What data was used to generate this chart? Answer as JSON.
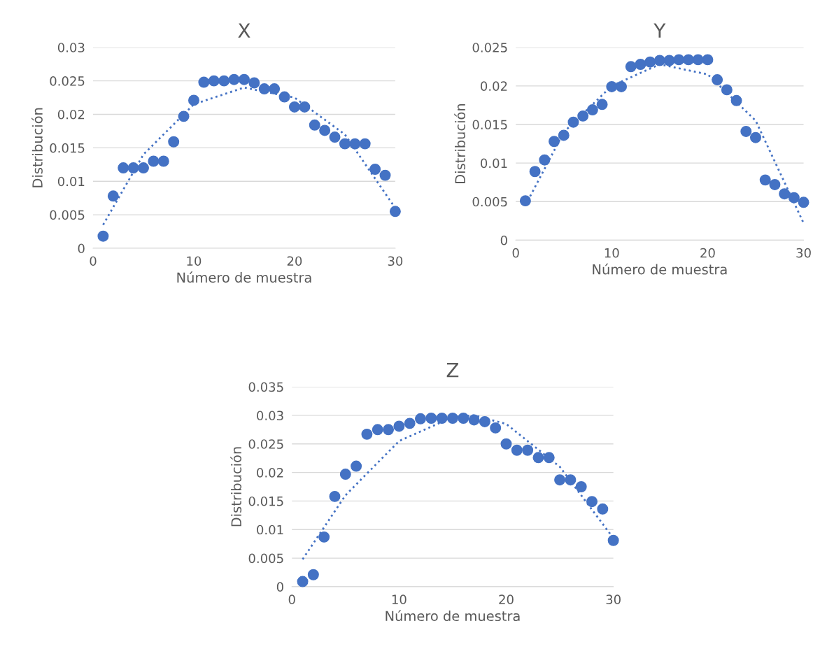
{
  "chart_data": [
    {
      "type": "scatter",
      "title": "X",
      "xlabel": "Número de muestra",
      "ylabel": "Distribución",
      "xlim": [
        0,
        30
      ],
      "xticks": [
        0,
        10,
        20,
        30
      ],
      "ylim": [
        0,
        0.03
      ],
      "yticks": [
        0,
        0.005,
        0.01,
        0.015,
        0.02,
        0.025,
        0.03
      ],
      "grid": "y",
      "legend": false,
      "x": [
        1,
        2,
        3,
        4,
        5,
        6,
        7,
        8,
        9,
        10,
        11,
        12,
        13,
        14,
        15,
        16,
        17,
        18,
        19,
        20,
        21,
        22,
        23,
        24,
        25,
        26,
        27,
        28,
        29,
        30
      ],
      "series": [
        {
          "color": "#4472c4",
          "marker": "circle",
          "values": [
            0.0018,
            0.0078,
            0.012,
            0.012,
            0.012,
            0.013,
            0.013,
            0.0159,
            0.0197,
            0.0221,
            0.0248,
            0.025,
            0.025,
            0.0252,
            0.0252,
            0.0247,
            0.0238,
            0.0238,
            0.0226,
            0.0211,
            0.0211,
            0.0184,
            0.0176,
            0.0166,
            0.0156,
            0.0156,
            0.0156,
            0.0118,
            0.0109,
            0.0055
          ]
        },
        {
          "type": "line",
          "color": "#4472c4",
          "marker": "none",
          "line_style": "dotted",
          "x": [
            1,
            5,
            10,
            15,
            20,
            25,
            30
          ],
          "values": [
            0.0035,
            0.014,
            0.0215,
            0.024,
            0.0225,
            0.017,
            0.006
          ]
        }
      ]
    },
    {
      "type": "scatter",
      "title": "Y",
      "xlabel": "Número de muestra",
      "ylabel": "Distribución",
      "xlim": [
        0,
        30
      ],
      "xticks": [
        0,
        10,
        20,
        30
      ],
      "ylim": [
        0,
        0.025
      ],
      "yticks": [
        0,
        0.005,
        0.01,
        0.015,
        0.02,
        0.025
      ],
      "grid": "y",
      "legend": false,
      "x": [
        1,
        2,
        3,
        4,
        5,
        6,
        7,
        8,
        9,
        10,
        11,
        12,
        13,
        14,
        15,
        16,
        17,
        18,
        19,
        20,
        21,
        22,
        23,
        24,
        25,
        26,
        27,
        28,
        29,
        30
      ],
      "series": [
        {
          "color": "#4472c4",
          "marker": "circle",
          "values": [
            0.0051,
            0.0089,
            0.0104,
            0.0128,
            0.0136,
            0.0153,
            0.0161,
            0.0169,
            0.0176,
            0.0199,
            0.0199,
            0.0225,
            0.0228,
            0.0231,
            0.0233,
            0.0233,
            0.0234,
            0.0234,
            0.0234,
            0.0234,
            0.0208,
            0.0195,
            0.0181,
            0.0141,
            0.0133,
            0.0078,
            0.0072,
            0.006,
            0.0055,
            0.0049
          ]
        },
        {
          "type": "line",
          "color": "#4472c4",
          "marker": "none",
          "line_style": "dotted",
          "x": [
            1,
            5,
            10,
            15,
            20,
            25,
            30
          ],
          "values": [
            0.0045,
            0.014,
            0.02,
            0.0228,
            0.0215,
            0.0155,
            0.0022
          ]
        }
      ]
    },
    {
      "type": "scatter",
      "title": "Z",
      "xlabel": "Número de muestra",
      "ylabel": "Distribución",
      "xlim": [
        0,
        30
      ],
      "xticks": [
        0,
        10,
        20,
        30
      ],
      "ylim": [
        0,
        0.035
      ],
      "yticks": [
        0,
        0.005,
        0.01,
        0.015,
        0.02,
        0.025,
        0.03,
        0.035
      ],
      "grid": "y",
      "legend": false,
      "x": [
        1,
        2,
        3,
        4,
        5,
        6,
        7,
        8,
        9,
        10,
        11,
        12,
        13,
        14,
        15,
        16,
        17,
        18,
        19,
        20,
        21,
        22,
        23,
        24,
        25,
        26,
        27,
        28,
        29,
        30
      ],
      "series": [
        {
          "color": "#4472c4",
          "marker": "circle",
          "values": [
            0.0009,
            0.0021,
            0.0087,
            0.0158,
            0.0197,
            0.0211,
            0.0267,
            0.0275,
            0.0275,
            0.0281,
            0.0286,
            0.0294,
            0.0295,
            0.0295,
            0.0295,
            0.0295,
            0.0292,
            0.0289,
            0.0278,
            0.025,
            0.0239,
            0.0239,
            0.0226,
            0.0226,
            0.0187,
            0.0187,
            0.0175,
            0.0149,
            0.0136,
            0.0081
          ]
        },
        {
          "type": "line",
          "color": "#4472c4",
          "marker": "none",
          "line_style": "dotted",
          "x": [
            1,
            5,
            10,
            15,
            17,
            20,
            25,
            30
          ],
          "values": [
            0.0048,
            0.016,
            0.0255,
            0.0297,
            0.03,
            0.0285,
            0.021,
            0.0085
          ]
        }
      ]
    }
  ]
}
